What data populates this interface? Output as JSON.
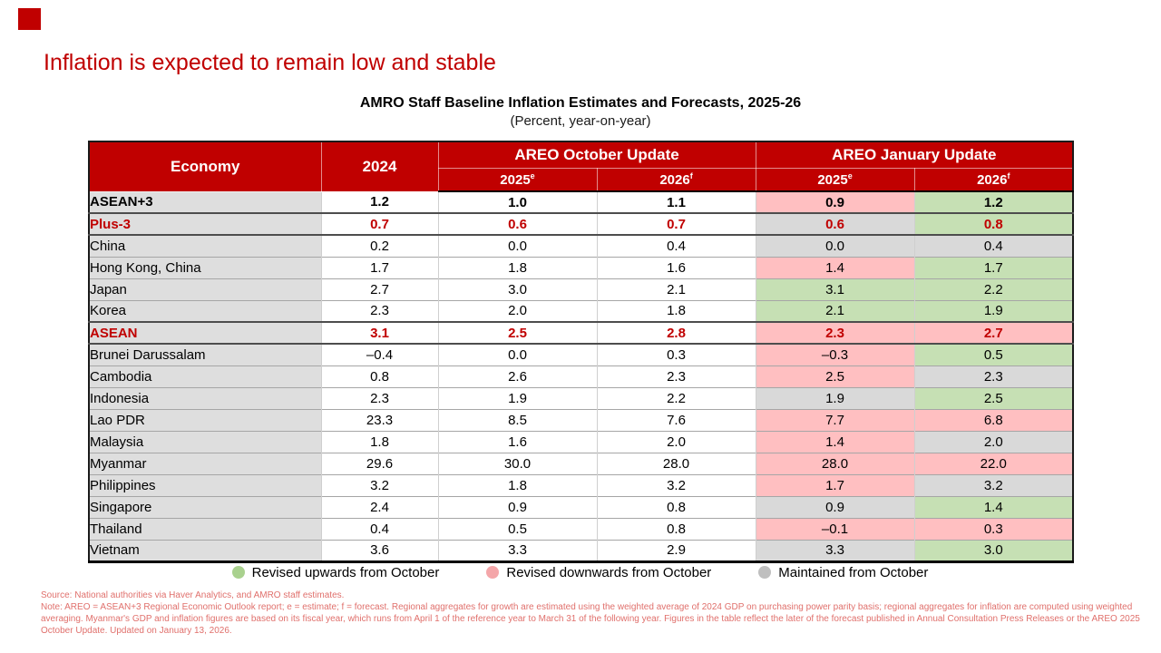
{
  "slide": {
    "title": "Inflation is expected to remain low and stable"
  },
  "table": {
    "title": "AMRO Staff Baseline Inflation Estimates and Forecasts, 2025-26",
    "subtitle": "(Percent, year-on-year)",
    "header": {
      "economy": "Economy",
      "year_2024": "2024",
      "october_group": "AREO October Update",
      "january_group": "AREO January Update",
      "year_2025": "2025",
      "sup_estimate": "e",
      "year_2026": "2026",
      "sup_forecast": "f"
    },
    "rows": [
      {
        "economy": "ASEAN+3",
        "level": 0,
        "style": "bold-black",
        "sep_below": true,
        "y2024": "1.2",
        "oct_2025": "1.0",
        "oct_2026": "1.1",
        "jan_2025": "0.9",
        "jan_2025_bg": "pink",
        "jan_2026": "1.2",
        "jan_2026_bg": "green"
      },
      {
        "economy": "Plus-3",
        "level": 1,
        "style": "bold-red",
        "sep_below": true,
        "y2024": "0.7",
        "oct_2025": "0.6",
        "oct_2026": "0.7",
        "jan_2025": "0.6",
        "jan_2025_bg": "gray",
        "jan_2026": "0.8",
        "jan_2026_bg": "green"
      },
      {
        "economy": "China",
        "level": 2,
        "style": "normal",
        "sep_below": false,
        "y2024": "0.2",
        "oct_2025": "0.0",
        "oct_2026": "0.4",
        "jan_2025": "0.0",
        "jan_2025_bg": "gray",
        "jan_2026": "0.4",
        "jan_2026_bg": "gray"
      },
      {
        "economy": "Hong Kong, China",
        "level": 2,
        "style": "normal",
        "sep_below": false,
        "y2024": "1.7",
        "oct_2025": "1.8",
        "oct_2026": "1.6",
        "jan_2025": "1.4",
        "jan_2025_bg": "pink",
        "jan_2026": "1.7",
        "jan_2026_bg": "green"
      },
      {
        "economy": "Japan",
        "level": 2,
        "style": "normal",
        "sep_below": false,
        "y2024": "2.7",
        "oct_2025": "3.0",
        "oct_2026": "2.1",
        "jan_2025": "3.1",
        "jan_2025_bg": "green",
        "jan_2026": "2.2",
        "jan_2026_bg": "green"
      },
      {
        "economy": "Korea",
        "level": 2,
        "style": "normal",
        "sep_below": true,
        "y2024": "2.3",
        "oct_2025": "2.0",
        "oct_2026": "1.8",
        "jan_2025": "2.1",
        "jan_2025_bg": "green",
        "jan_2026": "1.9",
        "jan_2026_bg": "green"
      },
      {
        "economy": "ASEAN",
        "level": 1,
        "style": "bold-red",
        "sep_below": true,
        "y2024": "3.1",
        "oct_2025": "2.5",
        "oct_2026": "2.8",
        "jan_2025": "2.3",
        "jan_2025_bg": "pink",
        "jan_2026": "2.7",
        "jan_2026_bg": "pink"
      },
      {
        "economy": "Brunei Darussalam",
        "level": 2,
        "style": "normal",
        "sep_below": false,
        "y2024": "–0.4",
        "oct_2025": "0.0",
        "oct_2026": "0.3",
        "jan_2025": "–0.3",
        "jan_2025_bg": "pink",
        "jan_2026": "0.5",
        "jan_2026_bg": "green"
      },
      {
        "economy": "Cambodia",
        "level": 2,
        "style": "normal",
        "sep_below": false,
        "y2024": "0.8",
        "oct_2025": "2.6",
        "oct_2026": "2.3",
        "jan_2025": "2.5",
        "jan_2025_bg": "pink",
        "jan_2026": "2.3",
        "jan_2026_bg": "gray"
      },
      {
        "economy": "Indonesia",
        "level": 2,
        "style": "normal",
        "sep_below": false,
        "y2024": "2.3",
        "oct_2025": "1.9",
        "oct_2026": "2.2",
        "jan_2025": "1.9",
        "jan_2025_bg": "gray",
        "jan_2026": "2.5",
        "jan_2026_bg": "green"
      },
      {
        "economy": "Lao PDR",
        "level": 2,
        "style": "normal",
        "sep_below": false,
        "y2024": "23.3",
        "oct_2025": "8.5",
        "oct_2026": "7.6",
        "jan_2025": "7.7",
        "jan_2025_bg": "pink",
        "jan_2026": "6.8",
        "jan_2026_bg": "pink"
      },
      {
        "economy": "Malaysia",
        "level": 2,
        "style": "normal",
        "sep_below": false,
        "y2024": "1.8",
        "oct_2025": "1.6",
        "oct_2026": "2.0",
        "jan_2025": "1.4",
        "jan_2025_bg": "pink",
        "jan_2026": "2.0",
        "jan_2026_bg": "gray"
      },
      {
        "economy": "Myanmar",
        "level": 2,
        "style": "normal",
        "sep_below": false,
        "y2024": "29.6",
        "oct_2025": "30.0",
        "oct_2026": "28.0",
        "jan_2025": "28.0",
        "jan_2025_bg": "pink",
        "jan_2026": "22.0",
        "jan_2026_bg": "pink"
      },
      {
        "economy": "Philippines",
        "level": 2,
        "style": "normal",
        "sep_below": false,
        "y2024": "3.2",
        "oct_2025": "1.8",
        "oct_2026": "3.2",
        "jan_2025": "1.7",
        "jan_2025_bg": "pink",
        "jan_2026": "3.2",
        "jan_2026_bg": "gray"
      },
      {
        "economy": "Singapore",
        "level": 2,
        "style": "normal",
        "sep_below": false,
        "y2024": "2.4",
        "oct_2025": "0.9",
        "oct_2026": "0.8",
        "jan_2025": "0.9",
        "jan_2025_bg": "gray",
        "jan_2026": "1.4",
        "jan_2026_bg": "green"
      },
      {
        "economy": "Thailand",
        "level": 2,
        "style": "normal",
        "sep_below": false,
        "y2024": "0.4",
        "oct_2025": "0.5",
        "oct_2026": "0.8",
        "jan_2025": "–0.1",
        "jan_2025_bg": "pink",
        "jan_2026": "0.3",
        "jan_2026_bg": "pink"
      },
      {
        "economy": "Vietnam",
        "level": 2,
        "style": "normal",
        "sep_below": false,
        "y2024": "3.6",
        "oct_2025": "3.3",
        "oct_2026": "2.9",
        "jan_2025": "3.3",
        "jan_2025_bg": "gray",
        "jan_2026": "3.0",
        "jan_2026_bg": "green"
      }
    ]
  },
  "legend": [
    {
      "name": "legend-revised-upwards",
      "label": "Revised upwards from October",
      "color": "#A9D18E"
    },
    {
      "name": "legend-revised-downwards",
      "label": "Revised downwards from October",
      "color": "#F4A6A9"
    },
    {
      "name": "legend-maintained",
      "label": "Maintained from October",
      "color": "#BFBFBF"
    }
  ],
  "footnotes": [
    "Source: National authorities via Haver Analytics, and AMRO staff estimates.",
    "Note: AREO = ASEAN+3 Regional Economic Outlook report; e = estimate; f = forecast. Regional aggregates for growth are estimated using the weighted average of 2024 GDP on purchasing power parity basis; regional aggregates for inflation are computed using weighted",
    "averaging. Myanmar's GDP and inflation figures are based on its fiscal year, which runs from April 1 of the reference year to March 31 of the following year. Figures in the table reflect the later of the forecast published in Annual Consultation Press Releases or the AREO 2025",
    "October Update. Updated on January 13, 2026."
  ],
  "colors": {
    "accent_red": "#C00000",
    "cell_pink": "#FFBFC1",
    "cell_green": "#C6E0B4",
    "cell_gray": "#D9D9D9",
    "economy_column_gray": "#DEDEDE",
    "footnote_red": "#E0706C"
  }
}
